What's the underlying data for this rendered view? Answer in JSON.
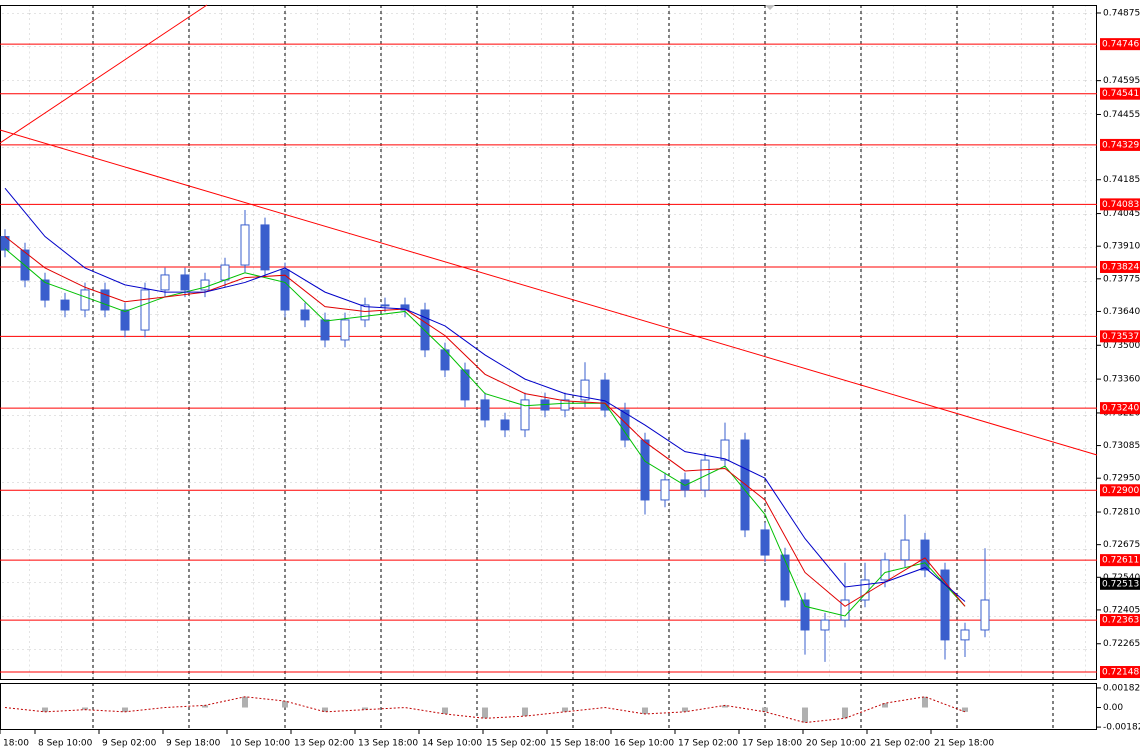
{
  "chart_data": {
    "type": "candlestick",
    "xlim": [
      -0.25,
      54.6
    ],
    "xticks": [
      {
        "value": -0.25,
        "label": "18:00"
      },
      {
        "value": 1.5,
        "label": "8 Sep 10:00"
      },
      {
        "value": 4.7,
        "label": "9 Sep 02:00"
      },
      {
        "value": 7.9,
        "label": "9 Sep 18:00"
      },
      {
        "value": 11.1,
        "label": "10 Sep 10:00"
      },
      {
        "value": 14.3,
        "label": "13 Sep 02:00"
      },
      {
        "value": 17.5,
        "label": "13 Sep 18:00"
      },
      {
        "value": 20.7,
        "label": "14 Sep 10:00"
      },
      {
        "value": 23.9,
        "label": "15 Sep 02:00"
      },
      {
        "value": 27.1,
        "label": "15 Sep 18:00"
      },
      {
        "value": 30.3,
        "label": "16 Sep 10:00"
      },
      {
        "value": 33.5,
        "label": "17 Sep 02:00"
      },
      {
        "value": 36.7,
        "label": "17 Sep 18:00"
      },
      {
        "value": 39.9,
        "label": "20 Sep 10:00"
      },
      {
        "value": 43.1,
        "label": "21 Sep 02:00"
      },
      {
        "value": 46.3,
        "label": "21 Sep 18:00"
      }
    ],
    "xgrid": [
      4.4,
      9.2,
      14.0,
      18.8,
      23.6,
      28.4,
      33.2,
      38.0,
      42.8,
      47.6,
      52.4
    ],
    "ylim": [
      0.72115,
      0.74908
    ],
    "yticks": [
      0.74875,
      0.74595,
      0.74455,
      0.74185,
      0.74045,
      {
        "value": 0.7391,
        "label": "0.73910"
      },
      0.73775,
      {
        "value": 0.7364,
        "label": "0.73640"
      },
      {
        "value": 0.735,
        "label": "0.73500"
      },
      {
        "value": 0.7336,
        "label": "0.73360"
      },
      {
        "value": 0.7322,
        "label": "0.73220"
      },
      0.73085,
      {
        "value": 0.7295,
        "label": "0.72950"
      },
      {
        "value": 0.7281,
        "label": "0.72810"
      },
      0.72675,
      {
        "value": 0.7254,
        "label": "0.72540"
      },
      0.72405,
      0.72265
    ],
    "levels": [
      0.74746,
      0.74541,
      0.74329,
      0.74083,
      0.73824,
      0.73537,
      {
        "value": 0.7324,
        "label": "0.73240"
      },
      {
        "value": 0.729,
        "label": "0.72900"
      },
      0.72611,
      0.72363,
      0.72148
    ],
    "level_color": "#ff0000",
    "last_price": 0.72513,
    "candle_color": "#3a5fcd",
    "candles": {
      "open": [
        0.7395,
        0.73894,
        0.7377,
        0.73687,
        0.73646,
        0.73729,
        0.73646,
        0.73563,
        0.73729,
        0.73791,
        0.73729,
        0.7377,
        0.73832,
        0.73998,
        0.73812,
        0.73646,
        0.73605,
        0.73522,
        0.73605,
        0.73667,
        0.73667,
        0.73646,
        0.73481,
        0.73398,
        0.73274,
        0.73191,
        0.7315,
        0.73274,
        0.73232,
        0.73274,
        0.73356,
        0.73232,
        0.73108,
        0.7286,
        0.72943,
        0.72901,
        0.73025,
        0.73108,
        0.72736,
        0.72632,
        0.72446,
        0.72322,
        0.72363,
        0.72446,
        0.72529,
        0.72612,
        0.72694,
        0.7257,
        0.72281,
        0.72322
      ],
      "high": [
        0.7398,
        0.73924,
        0.738,
        0.73717,
        0.73759,
        0.73759,
        0.73676,
        0.73759,
        0.73821,
        0.73821,
        0.738,
        0.73862,
        0.7406,
        0.74028,
        0.73842,
        0.73676,
        0.73635,
        0.73635,
        0.73697,
        0.73697,
        0.73697,
        0.73676,
        0.73511,
        0.73428,
        0.73304,
        0.73221,
        0.73304,
        0.73304,
        0.73304,
        0.7343,
        0.73386,
        0.73262,
        0.73138,
        0.72973,
        0.72973,
        0.73055,
        0.7318,
        0.73138,
        0.72766,
        0.72662,
        0.72476,
        0.72393,
        0.726,
        0.726,
        0.72642,
        0.728,
        0.72724,
        0.726,
        0.72352,
        0.7266
      ],
      "low": [
        0.73864,
        0.7374,
        0.73657,
        0.73616,
        0.73616,
        0.73616,
        0.73533,
        0.73533,
        0.73699,
        0.73699,
        0.73699,
        0.7374,
        0.73802,
        0.73782,
        0.73616,
        0.73575,
        0.73492,
        0.73492,
        0.73575,
        0.73637,
        0.73616,
        0.73451,
        0.73368,
        0.73244,
        0.73161,
        0.7312,
        0.7312,
        0.73202,
        0.73202,
        0.73244,
        0.73202,
        0.73078,
        0.728,
        0.7283,
        0.72871,
        0.72871,
        0.72995,
        0.72706,
        0.72602,
        0.72416,
        0.7222,
        0.7219,
        0.72333,
        0.72416,
        0.72499,
        0.72582,
        0.7254,
        0.722,
        0.7221,
        0.72292
      ],
      "close": [
        0.73894,
        0.7377,
        0.73687,
        0.73646,
        0.73729,
        0.73646,
        0.73563,
        0.73729,
        0.73791,
        0.73729,
        0.7377,
        0.73832,
        0.73998,
        0.73812,
        0.73646,
        0.73605,
        0.73522,
        0.73605,
        0.73667,
        0.73667,
        0.73646,
        0.73481,
        0.73398,
        0.73274,
        0.73191,
        0.7315,
        0.73274,
        0.73232,
        0.73274,
        0.73356,
        0.73232,
        0.73108,
        0.7286,
        0.72943,
        0.72901,
        0.73025,
        0.73108,
        0.72736,
        0.72632,
        0.72446,
        0.72322,
        0.72363,
        0.72446,
        0.72529,
        0.72612,
        0.72694,
        0.7257,
        0.72281,
        0.72322,
        0.72446
      ]
    },
    "indicators": [
      {
        "color": "#00c000",
        "x": [
          0,
          2,
          4,
          6,
          8,
          10,
          12,
          14,
          16,
          18,
          20,
          22,
          24,
          26,
          28,
          30,
          32,
          34,
          36,
          38,
          40,
          42,
          44,
          46,
          48
        ],
        "values": [
          0.739,
          0.7376,
          0.737,
          0.7364,
          0.737,
          0.7374,
          0.738,
          0.7376,
          0.736,
          0.7362,
          0.7364,
          0.7348,
          0.733,
          0.7325,
          0.7326,
          0.7326,
          0.7302,
          0.7292,
          0.73,
          0.728,
          0.7242,
          0.7238,
          0.7256,
          0.726,
          0.7242
        ]
      },
      {
        "color": "#e00000",
        "x": [
          0,
          2,
          4,
          6,
          8,
          10,
          12,
          14,
          16,
          18,
          20,
          22,
          24,
          26,
          28,
          30,
          32,
          34,
          36,
          38,
          40,
          42,
          44,
          46,
          48
        ],
        "values": [
          0.7395,
          0.7382,
          0.7374,
          0.7368,
          0.737,
          0.7372,
          0.7378,
          0.7379,
          0.7366,
          0.7364,
          0.7365,
          0.7354,
          0.7338,
          0.733,
          0.7327,
          0.7326,
          0.731,
          0.7298,
          0.7299,
          0.7286,
          0.7256,
          0.7242,
          0.7252,
          0.7262,
          0.7242
        ]
      },
      {
        "color": "#0000c8",
        "x": [
          0,
          2,
          4,
          6,
          8,
          10,
          12,
          14,
          16,
          18,
          20,
          22,
          24,
          26,
          28,
          30,
          32,
          34,
          36,
          38,
          40,
          42,
          44,
          46,
          48
        ],
        "values": [
          0.7415,
          0.7395,
          0.7382,
          0.7375,
          0.7372,
          0.7372,
          0.7376,
          0.7382,
          0.7372,
          0.7366,
          0.7365,
          0.7358,
          0.7346,
          0.7336,
          0.733,
          0.7327,
          0.7317,
          0.7306,
          0.7303,
          0.7295,
          0.727,
          0.725,
          0.7252,
          0.7258,
          0.7244
        ]
      }
    ],
    "trendlines": [
      {
        "x": [
          -0.25,
          54.6
        ],
        "values": [
          0.74391,
          0.73046
        ]
      },
      {
        "x": [
          -0.25,
          10.1
        ],
        "values": [
          0.74337,
          0.74908
        ]
      }
    ],
    "oscillator": {
      "ylim": [
        -0.00209,
        0.00228
      ],
      "yticks": [
        0.00182,
        {
          "value": 0,
          "label": "0.00"
        },
        -0.00182
      ],
      "color": "#c00000",
      "bar_color": "#b0b0b0",
      "x": [
        0,
        2,
        4,
        6,
        8,
        10,
        12,
        14,
        16,
        18,
        20,
        22,
        24,
        26,
        28,
        30,
        32,
        34,
        36,
        38,
        40,
        42,
        44,
        46,
        48
      ],
      "values": [
        0,
        -0.0004,
        -0.0002,
        -0.0004,
        0,
        0.0002,
        0.001,
        0.0006,
        -0.0004,
        -0.0002,
        0,
        -0.0006,
        -0.001,
        -0.0008,
        -0.0004,
        0,
        -0.0006,
        -0.0004,
        0.0002,
        -0.0004,
        -0.0014,
        -0.001,
        0.0004,
        0.001,
        -0.0004
      ]
    }
  }
}
